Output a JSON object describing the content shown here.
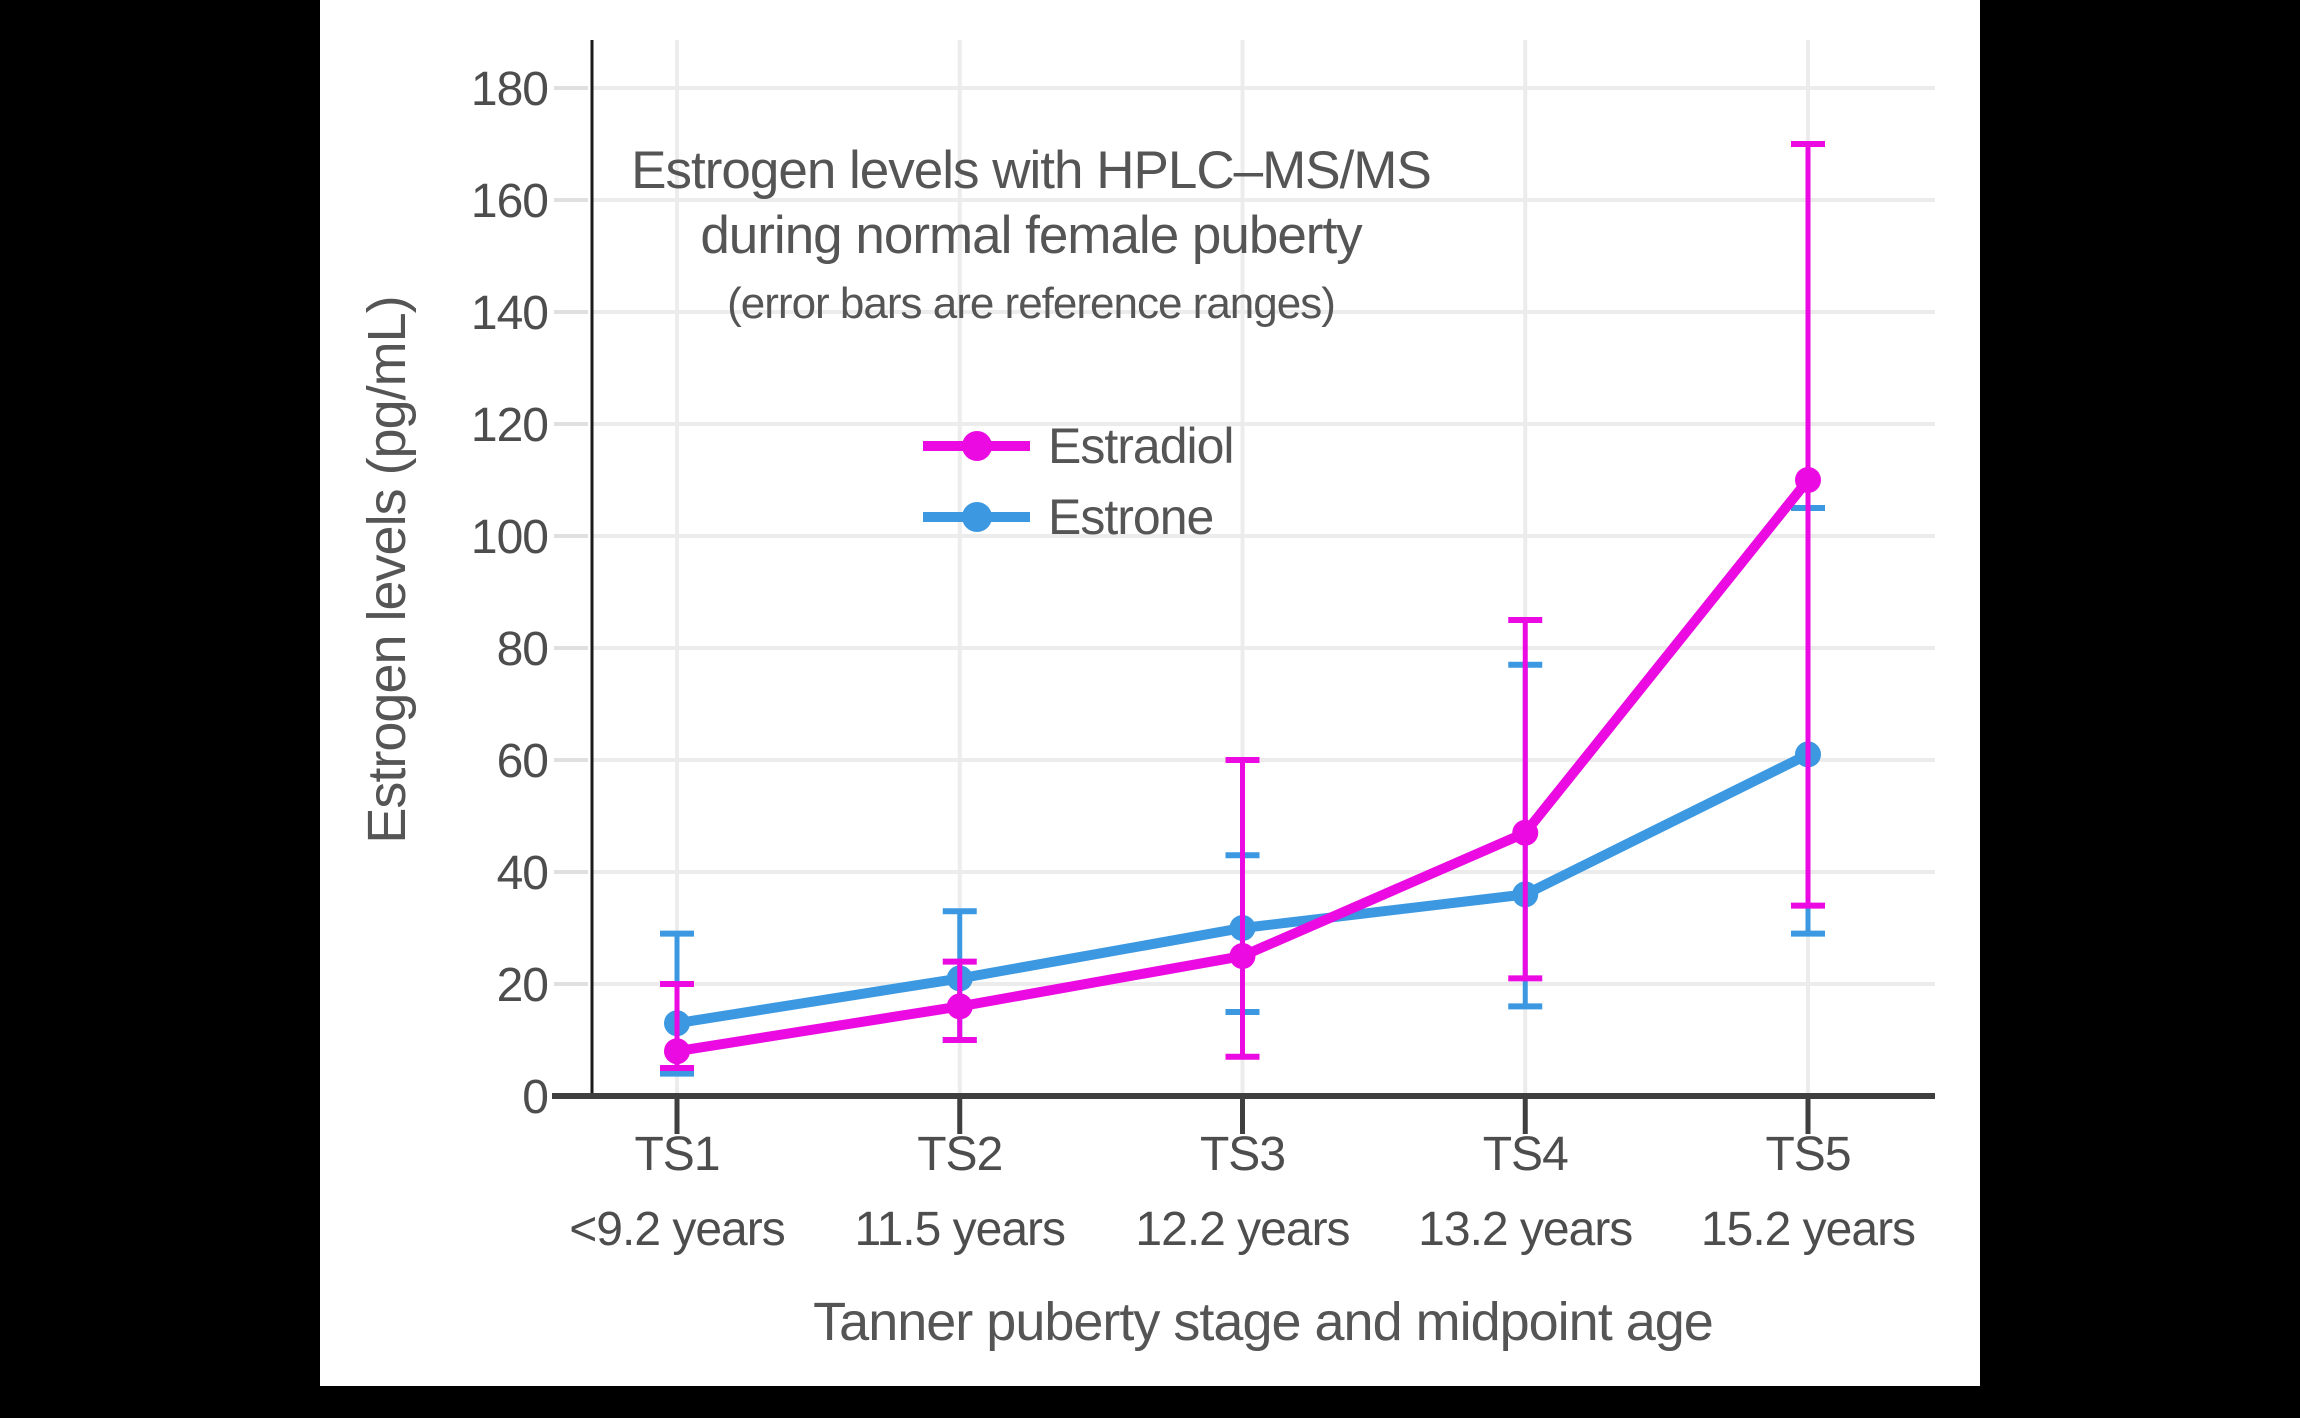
{
  "colors": {
    "background": "#000000",
    "plot_background": "#ffffff",
    "grid": "#ececec",
    "y_tick": "#e0e0e0",
    "x_axis": "#3f3f3f",
    "y_axis": "#1a1a1a",
    "text": "#555555",
    "tick_text": "#4d4d4d"
  },
  "chart_data": {
    "type": "line",
    "title_line1": "Estrogen levels with HPLC–MS/MS",
    "title_line2": "during normal female puberty",
    "subtitle": "(error bars are reference ranges)",
    "ylabel": "Estrogen levels (pg/mL)",
    "xlabel": "Tanner puberty stage and midpoint age",
    "categories": [
      "TS1",
      "TS2",
      "TS3",
      "TS4",
      "TS5"
    ],
    "category_sublabels": [
      "<9.2 years",
      "11.5 years",
      "12.2 years",
      "13.2 years",
      "15.2 years"
    ],
    "yticks": [
      0,
      20,
      40,
      60,
      80,
      100,
      120,
      140,
      160,
      180
    ],
    "ylim": [
      0,
      188
    ],
    "grid": true,
    "legend_position": "inside-upper-center",
    "series": [
      {
        "name": "Estradiol",
        "color": "#EB0AE1",
        "values": [
          8,
          16,
          25,
          47,
          110
        ],
        "error_low": [
          5,
          10,
          7,
          21,
          34
        ],
        "error_high": [
          20,
          24,
          60,
          85,
          170
        ]
      },
      {
        "name": "Estrone",
        "color": "#3C99E1",
        "values": [
          13,
          21,
          30,
          36,
          61
        ],
        "error_low": [
          4,
          10,
          15,
          16,
          29
        ],
        "error_high": [
          29,
          33,
          43,
          77,
          105
        ]
      }
    ]
  }
}
